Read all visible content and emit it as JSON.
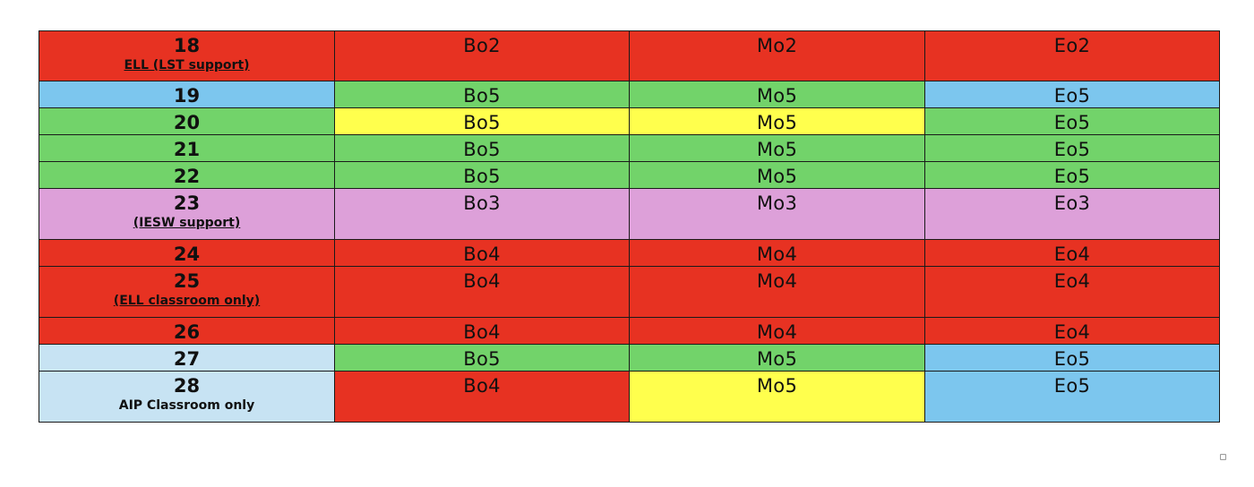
{
  "colors": {
    "red": "#E73222",
    "blue": "#7CC6EE",
    "green": "#72D36A",
    "yellow": "#FFFF4D",
    "purple": "#DDA0D9",
    "light_blue": "#C7E3F3"
  },
  "rows": [
    {
      "number": "18",
      "note": "ELL (LST support)",
      "note_underline": true,
      "cells": [
        "Bo2",
        "Mo2",
        "Eo2"
      ],
      "colors": [
        "red",
        "red",
        "red",
        "red"
      ]
    },
    {
      "number": "19",
      "note": "",
      "cells": [
        "Bo5",
        "Mo5",
        "Eo5"
      ],
      "colors": [
        "blue",
        "green",
        "green",
        "blue"
      ]
    },
    {
      "number": "20",
      "note": "",
      "cells": [
        "Bo5",
        "Mo5",
        "Eo5"
      ],
      "colors": [
        "green",
        "yellow",
        "yellow",
        "green"
      ]
    },
    {
      "number": "21",
      "note": "",
      "cells": [
        "Bo5",
        "Mo5",
        "Eo5"
      ],
      "colors": [
        "green",
        "green",
        "green",
        "green"
      ]
    },
    {
      "number": "22",
      "note": "",
      "cells": [
        "Bo5",
        "Mo5",
        "Eo5"
      ],
      "colors": [
        "green",
        "green",
        "green",
        "green"
      ]
    },
    {
      "number": "23",
      "note": "(IESW support)",
      "note_underline": true,
      "cells": [
        "Bo3",
        "Mo3",
        "Eo3"
      ],
      "colors": [
        "purple",
        "purple",
        "purple",
        "purple"
      ]
    },
    {
      "number": "24",
      "note": "",
      "cells": [
        "Bo4",
        "Mo4",
        "Eo4"
      ],
      "colors": [
        "red",
        "red",
        "red",
        "red"
      ]
    },
    {
      "number": "25",
      "note": "(ELL classroom only)",
      "note_underline": true,
      "cells": [
        "Bo4",
        "Mo4",
        "Eo4"
      ],
      "colors": [
        "red",
        "red",
        "red",
        "red"
      ]
    },
    {
      "number": "26",
      "note": "",
      "cells": [
        "Bo4",
        "Mo4",
        "Eo4"
      ],
      "colors": [
        "red",
        "red",
        "red",
        "red"
      ]
    },
    {
      "number": "27",
      "note": "",
      "cells": [
        "Bo5",
        "Mo5",
        "Eo5"
      ],
      "colors": [
        "light_blue",
        "green",
        "green",
        "blue"
      ]
    },
    {
      "number": "28",
      "note": "AIP Classroom only",
      "note_underline": false,
      "cells": [
        "Bo4",
        "Mo5",
        "Eo5"
      ],
      "colors": [
        "light_blue",
        "red",
        "yellow",
        "blue"
      ]
    }
  ]
}
